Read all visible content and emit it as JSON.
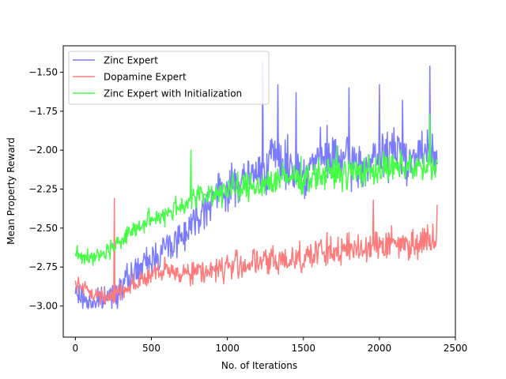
{
  "chart_data": {
    "type": "line",
    "title": "",
    "xlabel": "No. of Iterations",
    "ylabel": "Mean Property Reward",
    "xlim": [
      -80,
      2500
    ],
    "ylim": [
      -3.2,
      -1.33
    ],
    "xticks": [
      0,
      500,
      1000,
      1500,
      2000,
      2500
    ],
    "xtick_labels": [
      "0",
      "500",
      "1000",
      "1500",
      "2000",
      "2500"
    ],
    "yticks": [
      -3.0,
      -2.75,
      -2.5,
      -2.25,
      -2.0,
      -1.75,
      -1.5
    ],
    "ytick_labels": [
      "−3.00",
      "−2.75",
      "−2.50",
      "−2.25",
      "−2.00",
      "−1.75",
      "−1.50"
    ],
    "grid": false,
    "legend_position": "top-left",
    "noise_seed": 7,
    "series": [
      {
        "name": "Zinc Expert",
        "color": "#7b7bff",
        "x": [
          0,
          100,
          200,
          300,
          400,
          500,
          600,
          700,
          800,
          900,
          1000,
          1100,
          1200,
          1300,
          1400,
          1500,
          1600,
          1700,
          1800,
          1900,
          2000,
          2100,
          2200,
          2300,
          2380
        ],
        "values": [
          -2.92,
          -2.98,
          -2.95,
          -2.88,
          -2.78,
          -2.7,
          -2.62,
          -2.55,
          -2.42,
          -2.3,
          -2.25,
          -2.2,
          -2.15,
          -2.05,
          -2.1,
          -2.15,
          -2.05,
          -2.05,
          -2.08,
          -2.1,
          -2.05,
          -2.0,
          -2.05,
          -2.02,
          -2.0
        ],
        "noise": 0.09,
        "spikes": [
          [
            1230,
            -1.43
          ],
          [
            1330,
            -1.58
          ],
          [
            1450,
            -1.63
          ],
          [
            1800,
            -1.6
          ],
          [
            2000,
            -1.58
          ],
          [
            2150,
            -1.68
          ],
          [
            2330,
            -1.46
          ],
          [
            2378,
            -2.09
          ]
        ]
      },
      {
        "name": "Dopamine Expert",
        "color": "#ff7b7b",
        "x": [
          0,
          100,
          200,
          300,
          400,
          500,
          600,
          700,
          800,
          900,
          1000,
          1100,
          1200,
          1300,
          1400,
          1500,
          1600,
          1700,
          1800,
          1900,
          2000,
          2100,
          2200,
          2300,
          2380
        ],
        "values": [
          -2.85,
          -2.92,
          -2.95,
          -2.9,
          -2.85,
          -2.8,
          -2.78,
          -2.78,
          -2.78,
          -2.77,
          -2.75,
          -2.73,
          -2.72,
          -2.72,
          -2.7,
          -2.68,
          -2.66,
          -2.65,
          -2.64,
          -2.62,
          -2.6,
          -2.6,
          -2.6,
          -2.58,
          -2.55
        ],
        "noise": 0.06,
        "spikes": [
          [
            255,
            -2.31
          ],
          [
            1960,
            -2.32
          ],
          [
            2378,
            -2.35
          ]
        ]
      },
      {
        "name": "Zinc Expert with Initialization",
        "color": "#44ff44",
        "x": [
          0,
          100,
          200,
          300,
          400,
          500,
          600,
          700,
          800,
          900,
          1000,
          1100,
          1200,
          1300,
          1400,
          1500,
          1600,
          1700,
          1800,
          1900,
          2000,
          2100,
          2200,
          2300,
          2380
        ],
        "values": [
          -2.65,
          -2.7,
          -2.65,
          -2.58,
          -2.5,
          -2.45,
          -2.4,
          -2.35,
          -2.3,
          -2.28,
          -2.25,
          -2.25,
          -2.22,
          -2.2,
          -2.18,
          -2.17,
          -2.16,
          -2.15,
          -2.15,
          -2.13,
          -2.12,
          -2.12,
          -2.1,
          -2.12,
          -2.12
        ],
        "noise": 0.06,
        "spikes": [
          [
            760,
            -2.0
          ],
          [
            1720,
            -1.97
          ],
          [
            2330,
            -1.77
          ]
        ]
      }
    ]
  }
}
